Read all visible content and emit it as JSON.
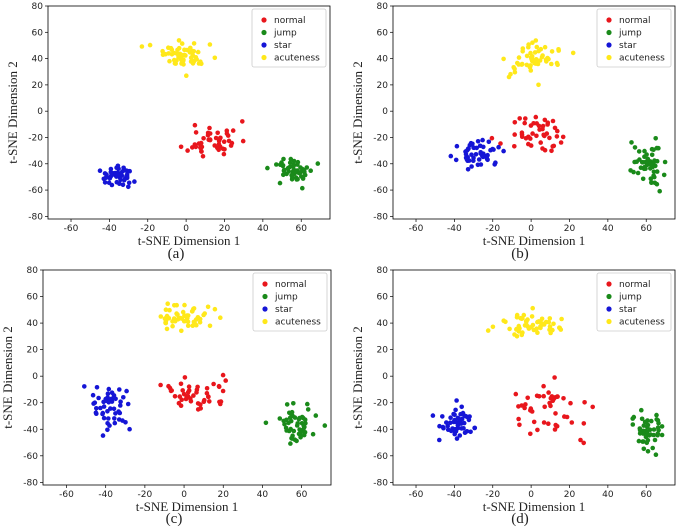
{
  "chart_data": [
    {
      "type": "scatter",
      "caption": "(a)",
      "xlabel": "t-SNE Dimension 1",
      "ylabel": "t-SNE Dimension 2",
      "xlim": [
        -72,
        75
      ],
      "ylim": [
        -82,
        80
      ],
      "xticks": [
        -60,
        -40,
        -20,
        0,
        20,
        40,
        60
      ],
      "yticks": [
        -80,
        -60,
        -40,
        -20,
        0,
        20,
        40,
        60,
        80
      ],
      "legend_position": "top-right",
      "series": [
        {
          "name": "normal",
          "color": "#e8161c",
          "center": [
            14,
            -22
          ],
          "spread": [
            12,
            13
          ],
          "n": 46,
          "seed": 11
        },
        {
          "name": "jump",
          "color": "#1a8a1a",
          "center": [
            57,
            -45
          ],
          "spread": [
            10,
            8
          ],
          "n": 50,
          "seed": 12
        },
        {
          "name": "star",
          "color": "#1515d6",
          "center": [
            -36,
            -49
          ],
          "spread": [
            7,
            6.5
          ],
          "n": 52,
          "seed": 13
        },
        {
          "name": "acuteness",
          "color": "#ffe81a",
          "center": [
            1,
            43
          ],
          "spread": [
            15,
            9
          ],
          "n": 56,
          "seed": 14
        }
      ]
    },
    {
      "type": "scatter",
      "caption": "(b)",
      "xlabel": "t-SNE Dimension 1",
      "ylabel": "t-SNE Dimension 2",
      "xlim": [
        -72,
        75
      ],
      "ylim": [
        -82,
        80
      ],
      "xticks": [
        -60,
        -40,
        -20,
        0,
        20,
        40,
        60
      ],
      "yticks": [
        -80,
        -60,
        -40,
        -20,
        0,
        20,
        40,
        60,
        80
      ],
      "legend_position": "top-right",
      "series": [
        {
          "name": "normal",
          "color": "#e8161c",
          "center": [
            5,
            -18
          ],
          "spread": [
            15,
            13
          ],
          "n": 46,
          "seed": 21
        },
        {
          "name": "jump",
          "color": "#1a8a1a",
          "center": [
            60,
            -40
          ],
          "spread": [
            8,
            14
          ],
          "n": 50,
          "seed": 22
        },
        {
          "name": "star",
          "color": "#1515d6",
          "center": [
            -27,
            -33
          ],
          "spread": [
            10,
            8
          ],
          "n": 52,
          "seed": 23
        },
        {
          "name": "acuteness",
          "color": "#ffe81a",
          "center": [
            0,
            38
          ],
          "spread": [
            13,
            14
          ],
          "n": 56,
          "seed": 24
        }
      ]
    },
    {
      "type": "scatter",
      "caption": "(c)",
      "xlabel": "t-SNE Dimension 1",
      "ylabel": "t-SNE Dimension 2",
      "xlim": [
        -72,
        75
      ],
      "ylim": [
        -82,
        80
      ],
      "xticks": [
        -60,
        -40,
        -20,
        0,
        20,
        40,
        60
      ],
      "yticks": [
        -80,
        -60,
        -40,
        -20,
        0,
        20,
        40,
        60,
        80
      ],
      "legend_position": "top-right",
      "series": [
        {
          "name": "normal",
          "color": "#e8161c",
          "center": [
            4,
            -14
          ],
          "spread": [
            18,
            11
          ],
          "n": 46,
          "seed": 31
        },
        {
          "name": "jump",
          "color": "#1a8a1a",
          "center": [
            57,
            -35
          ],
          "spread": [
            10,
            13
          ],
          "n": 50,
          "seed": 32
        },
        {
          "name": "star",
          "color": "#1515d6",
          "center": [
            -38,
            -25
          ],
          "spread": [
            8,
            16
          ],
          "n": 52,
          "seed": 33
        },
        {
          "name": "acuteness",
          "color": "#ffe81a",
          "center": [
            0,
            44
          ],
          "spread": [
            14,
            10
          ],
          "n": 56,
          "seed": 34
        }
      ]
    },
    {
      "type": "scatter",
      "caption": "(d)",
      "xlabel": "t-SNE Dimension 1",
      "ylabel": "t-SNE Dimension 2",
      "xlim": [
        -72,
        75
      ],
      "ylim": [
        -82,
        80
      ],
      "xticks": [
        -60,
        -40,
        -20,
        0,
        20,
        40,
        60
      ],
      "yticks": [
        -80,
        -60,
        -40,
        -20,
        0,
        20,
        40,
        60,
        80
      ],
      "legend_position": "top-right",
      "series": [
        {
          "name": "normal",
          "color": "#e8161c",
          "center": [
            12,
            -25
          ],
          "spread": [
            22,
            18
          ],
          "n": 46,
          "seed": 41
        },
        {
          "name": "jump",
          "color": "#1a8a1a",
          "center": [
            60,
            -40
          ],
          "spread": [
            8,
            13
          ],
          "n": 50,
          "seed": 42
        },
        {
          "name": "star",
          "color": "#1515d6",
          "center": [
            -40,
            -35
          ],
          "spread": [
            9,
            13
          ],
          "n": 52,
          "seed": 43
        },
        {
          "name": "acuteness",
          "color": "#ffe81a",
          "center": [
            0,
            38
          ],
          "spread": [
            16,
            10
          ],
          "n": 56,
          "seed": 44
        }
      ]
    }
  ]
}
